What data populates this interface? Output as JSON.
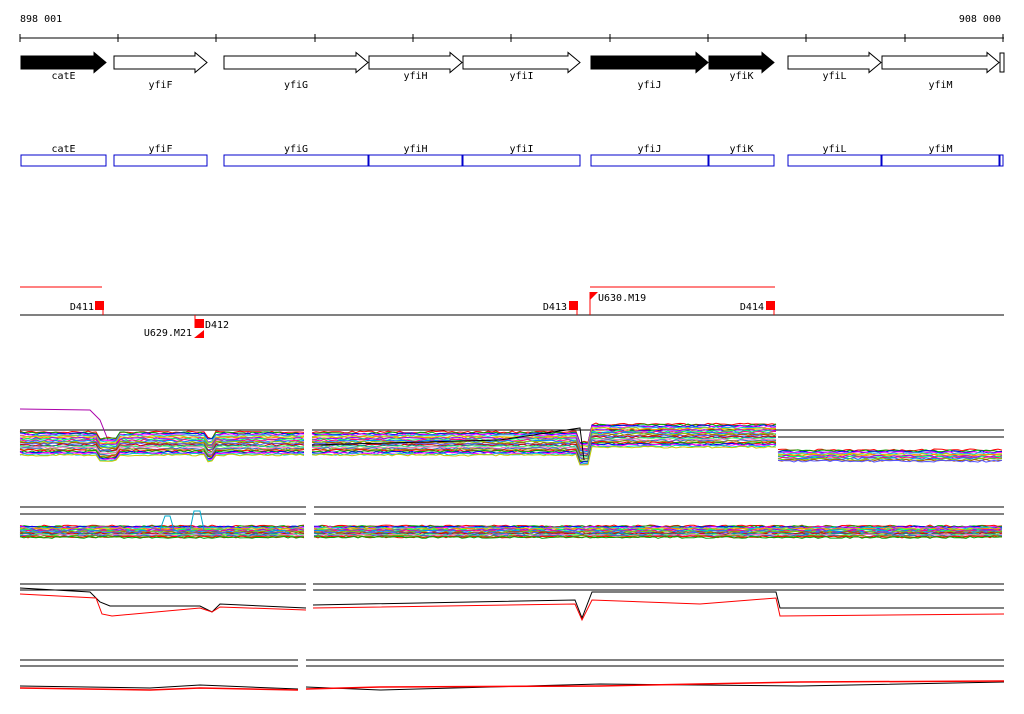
{
  "ruler": {
    "start_label": "898 001",
    "end_label": "908 000"
  },
  "colors": {
    "gene_dark": "#000000",
    "gene_light": "#ffffff",
    "gene_box": "#0000cc",
    "marker": "#ff0000",
    "trace_black": "#000000",
    "trace_red": "#ff0000"
  },
  "genes": [
    {
      "name": "catE",
      "strand": "+",
      "filled": true,
      "label_pos": "below-close"
    },
    {
      "name": "yfiF",
      "strand": "+",
      "filled": false,
      "label_pos": "below-far"
    },
    {
      "name": "yfiG",
      "strand": "+",
      "filled": false,
      "label_pos": "below-far"
    },
    {
      "name": "yfiH",
      "strand": "+",
      "filled": false,
      "label_pos": "below-close"
    },
    {
      "name": "yfiI",
      "strand": "+",
      "filled": false,
      "label_pos": "below-close"
    },
    {
      "name": "yfiJ",
      "strand": "+",
      "filled": true,
      "label_pos": "below-far"
    },
    {
      "name": "yfiK",
      "strand": "+",
      "filled": true,
      "label_pos": "below-close"
    },
    {
      "name": "yfiL",
      "strand": "+",
      "filled": false,
      "label_pos": "below-close"
    },
    {
      "name": "yfiM",
      "strand": "+",
      "filled": false,
      "label_pos": "below-far"
    }
  ],
  "markers": [
    {
      "label": "D411"
    },
    {
      "label": "D412"
    },
    {
      "label": "U629.M21"
    },
    {
      "label": "D413"
    },
    {
      "label": "U630.M19"
    },
    {
      "label": "D414"
    }
  ],
  "track_panels": [
    {
      "name": "multi-sample-track-1",
      "style": "rainbow"
    },
    {
      "name": "multi-sample-track-2",
      "style": "rainbow"
    },
    {
      "name": "pair-track-1",
      "style": "black-red"
    },
    {
      "name": "pair-track-2",
      "style": "black-red"
    }
  ]
}
